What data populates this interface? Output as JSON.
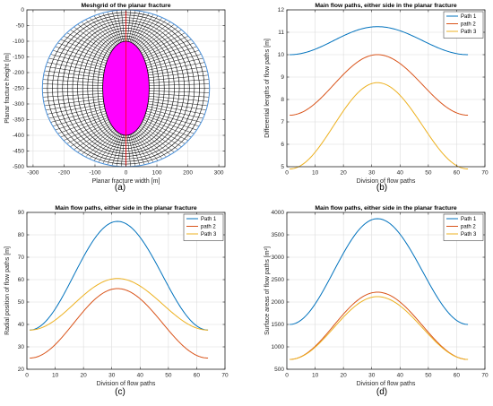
{
  "chart_data": [
    {
      "type": "line",
      "panel_label": "(a)",
      "title": "Meshgrid of the planar fracture",
      "xlabel": "Planar fracture width [m]",
      "ylabel": "Planar fracture height [m]",
      "xlim": [
        -320,
        320
      ],
      "ylim": [
        -500,
        0
      ],
      "xticks": [
        -300,
        -200,
        -100,
        0,
        100,
        200,
        300
      ],
      "yticks": [
        -500,
        -450,
        -400,
        -350,
        -300,
        -250,
        -200,
        -150,
        -100,
        -50,
        0
      ],
      "grid": true,
      "mesh": {
        "center": [
          0,
          -250
        ],
        "outer_semi_axes": [
          270,
          250
        ],
        "inner_semi_axes": [
          75,
          150
        ],
        "rings": 12,
        "spokes": 112,
        "outer_color": "#4a90d9",
        "mesh_color": "#000000",
        "fill_color": "#ff00ff",
        "axis_color": "#ff0000"
      }
    },
    {
      "type": "line",
      "panel_label": "(b)",
      "title": "Main flow paths, either side in the planar fracture",
      "xlabel": "Division of flow paths",
      "ylabel": "Differential lengths of flow paths [m]",
      "xlim": [
        0,
        70
      ],
      "ylim": [
        5,
        12
      ],
      "xticks": [
        0,
        10,
        20,
        30,
        40,
        50,
        60,
        70
      ],
      "yticks": [
        5,
        6,
        7,
        8,
        9,
        10,
        11,
        12
      ],
      "grid": true,
      "legend": "top-right",
      "x": [
        1,
        64
      ],
      "series": [
        {
          "name": "Path 1",
          "shape": "cosine",
          "start": 10.0,
          "peak": 11.25,
          "peak_x": 32,
          "color": "#0072bd"
        },
        {
          "name": "path 2",
          "shape": "cosine",
          "start": 7.3,
          "peak": 10.0,
          "peak_x": 32,
          "color": "#d95319"
        },
        {
          "name": "Path 3",
          "shape": "cosine",
          "start": 4.9,
          "peak": 8.75,
          "peak_x": 32,
          "color": "#edb120"
        }
      ]
    },
    {
      "type": "line",
      "panel_label": "(c)",
      "title": "Main flow paths, either side in the planar fracture",
      "xlabel": "Division of flow paths",
      "ylabel": "Radial position of flow paths [m]",
      "xlim": [
        0,
        70
      ],
      "ylim": [
        20,
        90
      ],
      "xticks": [
        0,
        10,
        20,
        30,
        40,
        50,
        60,
        70
      ],
      "yticks": [
        20,
        30,
        40,
        50,
        60,
        70,
        80,
        90
      ],
      "grid": true,
      "legend": "top-right",
      "x": [
        1,
        64
      ],
      "series": [
        {
          "name": "Path 1",
          "shape": "cosine",
          "start": 37.5,
          "peak": 86,
          "peak_x": 32,
          "color": "#0072bd"
        },
        {
          "name": "path 2",
          "shape": "cosine",
          "start": 25,
          "peak": 56,
          "peak_x": 32,
          "color": "#d95319"
        },
        {
          "name": "Path 3",
          "shape": "cosine",
          "start": 37.5,
          "peak": 60.5,
          "peak_x": 32,
          "color": "#edb120"
        }
      ]
    },
    {
      "type": "line",
      "panel_label": "(d)",
      "title": "Main flow paths, either side in the planar fracture",
      "xlabel": "Division of flow paths",
      "ylabel": "Surface areas of flow paths [m²]",
      "xlim": [
        0,
        70
      ],
      "ylim": [
        500,
        4000
      ],
      "xticks": [
        0,
        10,
        20,
        30,
        40,
        50,
        60,
        70
      ],
      "yticks": [
        500,
        1000,
        1500,
        2000,
        2500,
        3000,
        3500,
        4000
      ],
      "grid": true,
      "legend": "top-right",
      "x": [
        1,
        64
      ],
      "series": [
        {
          "name": "Path 1",
          "shape": "cosine",
          "start": 1500,
          "peak": 3860,
          "peak_x": 32,
          "color": "#0072bd"
        },
        {
          "name": "path 2",
          "shape": "cosine",
          "start": 720,
          "peak": 2220,
          "peak_x": 32,
          "color": "#d95319"
        },
        {
          "name": "Path 3",
          "shape": "cosine",
          "start": 720,
          "peak": 2120,
          "peak_x": 32,
          "color": "#edb120"
        }
      ]
    }
  ]
}
